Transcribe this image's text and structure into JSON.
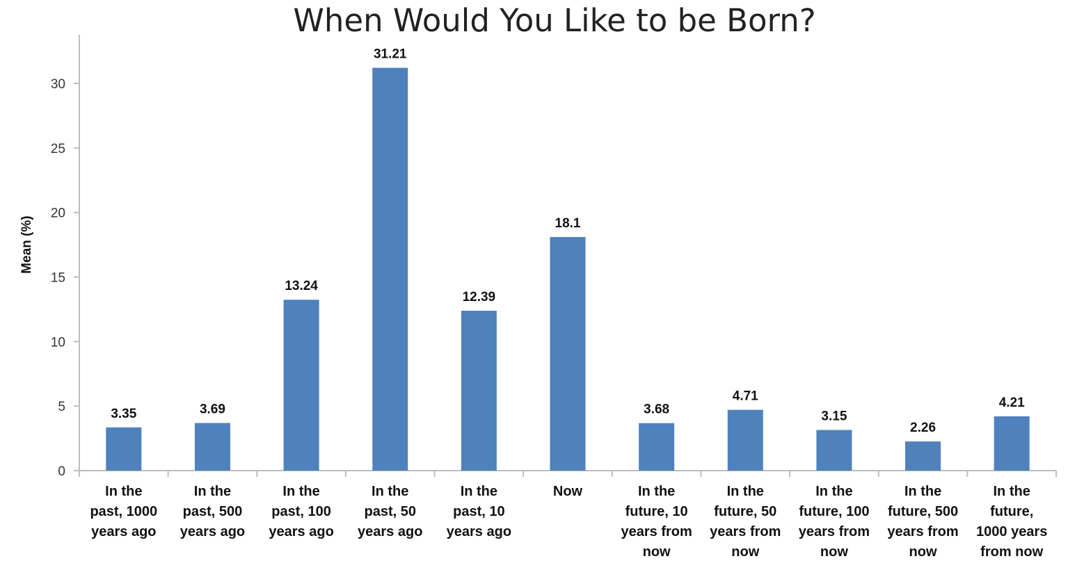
{
  "chart_data": {
    "type": "bar",
    "title": "When Would You Like to be Born?",
    "xlabel": "",
    "ylabel": "Mean (%)",
    "ylim": [
      0,
      35
    ],
    "yticks": [
      "0",
      "5",
      "10",
      "15",
      "20",
      "25",
      "30"
    ],
    "grid": false,
    "bar_color": "#4f81bd",
    "categories": [
      [
        "In the",
        "past, 1000",
        "years ago"
      ],
      [
        "In the",
        "past, 500",
        "years ago"
      ],
      [
        "In the",
        "past, 100",
        "years ago"
      ],
      [
        "In the",
        "past, 50",
        "years ago"
      ],
      [
        "In the",
        "past, 10",
        "years ago"
      ],
      [
        "Now"
      ],
      [
        "In the",
        "future, 10",
        "years from",
        "now"
      ],
      [
        "In the",
        "future, 50",
        "years from",
        "now"
      ],
      [
        "In the",
        "future, 100",
        "years from",
        "now"
      ],
      [
        "In the",
        "future, 500",
        "years from",
        "now"
      ],
      [
        "In the",
        "future,",
        "1000 years",
        "from now"
      ]
    ],
    "values": [
      3.35,
      3.69,
      13.24,
      31.21,
      12.39,
      18.1,
      3.68,
      4.71,
      3.15,
      2.26,
      4.21
    ],
    "value_labels": [
      "3.35",
      "3.69",
      "13.24",
      "31.21",
      "12.39",
      "18.1",
      "3.68",
      "4.71",
      "3.15",
      "2.26",
      "4.21"
    ]
  }
}
